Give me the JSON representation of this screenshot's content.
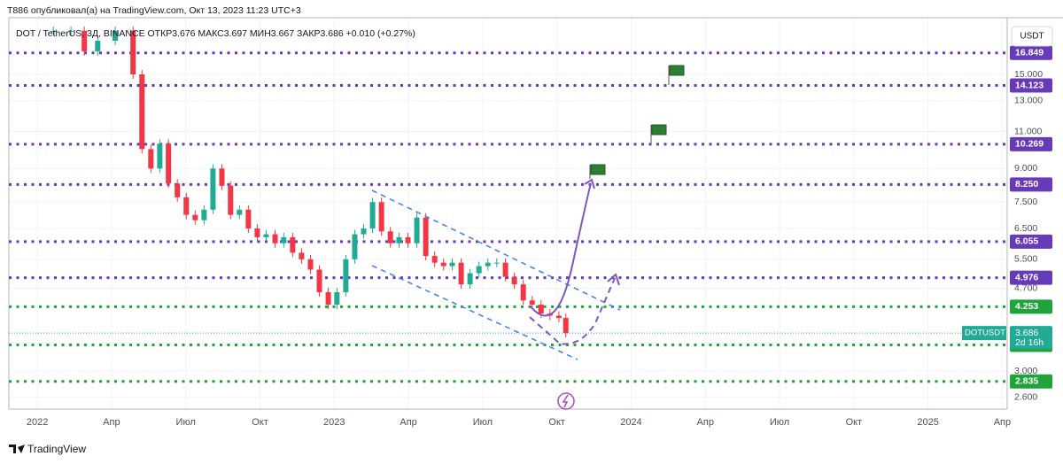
{
  "chart_data": {
    "type": "candlestick",
    "header": "T886 опубликовал(а) на TradingView.com, Окт 13, 2023 11:23 UTC+3",
    "legend": "DOT / TetherUS, 3Д, BINANCE  ОТКР3.676 МАКС3.697 МИН3.667 ЗАКР3.686 +0.010 (+0.27%)",
    "currency": "USDT",
    "footer": "TradingView",
    "log_scale": true,
    "grid": true,
    "up_color": "#22ab94",
    "down_color": "#f23645",
    "x": [
      0.65,
      1.36,
      1.9,
      2.44,
      3.15,
      3.87,
      4.23,
      4.59,
      4.95,
      5.3,
      5.66,
      6.02,
      6.38,
      6.74,
      7.1,
      7.46,
      7.81,
      8.17,
      8.53,
      8.89,
      9.25,
      9.61,
      9.96,
      10.32,
      10.68,
      11.04,
      11.4,
      11.76,
      12.11,
      12.47,
      12.83,
      13.19,
      13.55,
      13.91,
      14.27,
      14.62,
      14.98,
      15.34,
      15.7,
      16.06,
      16.42,
      16.77,
      17.13,
      17.49,
      17.85,
      18.21,
      18.57,
      18.92,
      19.28,
      19.64,
      20.0,
      20.36,
      20.72,
      21.08,
      21.36
    ],
    "series": [
      {
        "name": "DOTUSDT",
        "values": [
          19,
          19,
          17,
          18,
          19,
          15,
          10,
          9,
          10.3,
          8.3,
          7.7,
          7.0,
          6.8,
          7.2,
          9.0,
          8.2,
          7.0,
          7.2,
          6.5,
          6.2,
          6.3,
          6.0,
          6.2,
          5.7,
          5.5,
          5.2,
          4.6,
          4.3,
          4.6,
          5.5,
          6.3,
          6.5,
          7.5,
          6.4,
          6.0,
          6.2,
          6.0,
          6.9,
          5.6,
          5.4,
          5.3,
          5.4,
          4.8,
          5.1,
          5.3,
          5.4,
          5.4,
          5.0,
          4.8,
          4.4,
          4.3,
          4.1,
          4.05,
          4.0,
          3.686
        ]
      }
    ],
    "last_price": 3.686,
    "countdown": "2d 16h",
    "xlim": [
      -1.15,
      39.2
    ],
    "xticks": [
      {
        "value": 0,
        "label": "2022"
      },
      {
        "value": 3,
        "label": "Апр"
      },
      {
        "value": 6,
        "label": "Июл"
      },
      {
        "value": 9,
        "label": "Окт"
      },
      {
        "value": 12,
        "label": "2023"
      },
      {
        "value": 15,
        "label": "Апр"
      },
      {
        "value": 18,
        "label": "Июл"
      },
      {
        "value": 21,
        "label": "Окт"
      },
      {
        "value": 24,
        "label": "2024"
      },
      {
        "value": 27,
        "label": "Апр"
      },
      {
        "value": 30,
        "label": "Июл"
      },
      {
        "value": 33,
        "label": "Окт"
      },
      {
        "value": 36,
        "label": "2025"
      },
      {
        "value": 39,
        "label": "Апр"
      }
    ],
    "ylim": [
      2.44,
      20.4
    ],
    "yticks": [
      {
        "value": 15,
        "label": "15.000"
      },
      {
        "value": 13,
        "label": "13.000"
      },
      {
        "value": 11,
        "label": "11.000"
      },
      {
        "value": 9,
        "label": "9.000"
      },
      {
        "value": 7.5,
        "label": "7.500"
      },
      {
        "value": 6.5,
        "label": "6.500"
      },
      {
        "value": 5.5,
        "label": "5.500"
      },
      {
        "value": 4.7,
        "label": "4.700"
      },
      {
        "value": 3,
        "label": "3.000"
      },
      {
        "value": 2.6,
        "label": "2.600"
      }
    ],
    "levels": [
      {
        "value": 16.849,
        "color": "#673ab7"
      },
      {
        "value": 14.123,
        "color": "#673ab7"
      },
      {
        "value": 10.269,
        "color": "#673ab7"
      },
      {
        "value": {
          "value": 8.25,
          "label": "8.250"
        },
        "color": "#673ab7"
      },
      {
        "value": 6.055,
        "color": "#673ab7"
      },
      {
        "value": 4.976,
        "color": "#673ab7"
      },
      {
        "value": 4.253,
        "color": "#1fa33a"
      },
      {
        "value": 3.456,
        "color": "#1fa33a"
      },
      {
        "value": 2.835,
        "color": "#1fa33a"
      }
    ]
  }
}
